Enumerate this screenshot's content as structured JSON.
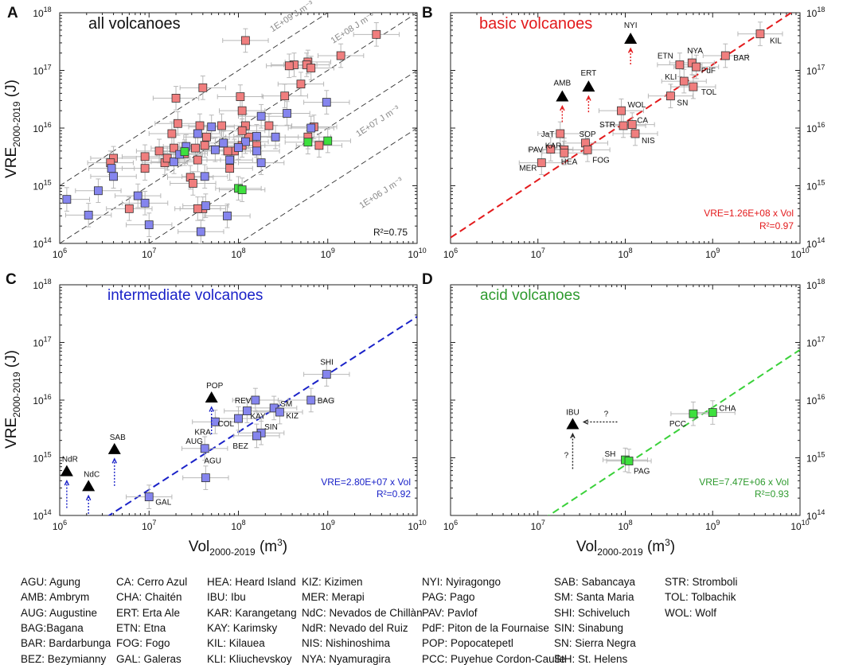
{
  "colors": {
    "basic": "#f07e7e",
    "intermediate": "#8585ee",
    "acid": "#3ee03e",
    "basic_line": "#e31a1c",
    "intermediate_line": "#1a22c8",
    "acid_line": "#2fd02f",
    "ref_line": "#333333",
    "errbar": "#b8b8b8"
  },
  "axes": {
    "xlabel": "Vol",
    "xlabel_sub": "2000-2019",
    "xlabel_unit": " (m",
    "xlabel_unit_sup": "3",
    "xlabel_close": ")",
    "ylabel": "VRE",
    "ylabel_sub": "2000-2019",
    "ylabel_unit": " (J)",
    "xlim": [
      1000000,
      10000000000
    ],
    "ylim": [
      100000000000000,
      1000000000000000000
    ],
    "x_ticks": [
      1000000,
      10000000,
      100000000,
      1000000000,
      10000000000
    ],
    "y_ticks": [
      100000000000000,
      1000000000000000,
      10000000000000000,
      100000000000000000,
      1000000000000000000
    ]
  },
  "chart_data": [
    {
      "id": "A",
      "type": "scatter",
      "panel_letter": "A",
      "title": "all volcanoes",
      "title_color": "#111111",
      "r2_text": "R²=0.75",
      "ref_lines": [
        {
          "label": "1E+09 J m⁻³",
          "factor": 1000000000
        },
        {
          "label": "1E+08 J m⁻³",
          "factor": 100000000
        },
        {
          "label": "1E+07 J m⁻³",
          "factor": 10000000
        },
        {
          "label": "1E+06 J m⁻³",
          "factor": 1000000
        }
      ],
      "series": [
        {
          "name": "basic",
          "points": [
            [
              3500000000.0,
              4.2e+17
            ],
            [
              1400000000.0,
              1.8e+17
            ],
            [
              600000000.0,
              1.4e+17
            ],
            [
              580000000.0,
              1.25e+17
            ],
            [
              650000000.0,
              1.1e+17
            ],
            [
              420000000.0,
              1.25e+17
            ],
            [
              330000000.0,
              3.6e+16
            ],
            [
              105000000.0,
              3.5e+16
            ],
            [
              110000000.0,
              2e+16
            ],
            [
              120000000.0,
              1.1e+16
            ],
            [
              130000000.0,
              7000000000000000.0
            ],
            [
              160000000.0,
              5000000000000000.0
            ],
            [
              90000000.0,
              4000000000000000.0
            ],
            [
              42000000.0,
              5000000000000000.0
            ],
            [
              25000000.0,
              3600000000000000.0
            ],
            [
              19000000.0,
              4500000000000000.0
            ],
            [
              13000000.0,
              4000000000000000.0
            ],
            [
              15000000.0,
              2500000000000000.0
            ],
            [
              9000000.0,
              3200000000000000.0
            ],
            [
              4000000.0,
              3000000000000000.0
            ],
            [
              3700000.0,
              2500000000000000.0
            ],
            [
              120000000.0,
              3.3e+17
            ],
            [
              20000000.0,
              3.3e+16
            ],
            [
              40000000.0,
              5e+16
            ],
            [
              500000000.0,
              5.8e+16
            ],
            [
              370000000.0,
              1.2e+17
            ],
            [
              220000000.0,
              1.1e+16
            ],
            [
              700000000.0,
              1.05e+16
            ],
            [
              600000000.0,
              7000000000000000.0
            ],
            [
              800000000.0,
              5000000000000000.0
            ],
            [
              35000000.0,
              2800000000000000.0
            ],
            [
              29000000.0,
              1400000000000000.0
            ],
            [
              31000000.0,
              1100000000000000.0
            ],
            [
              40000000.0,
              400000000000000.0
            ],
            [
              35000000.0,
              400000000000000.0
            ],
            [
              6000000.0,
              400000000000000.0
            ],
            [
              9000000.0,
              2000000000000000.0
            ],
            [
              18000000.0,
              8000000000000000.0
            ],
            [
              21000000.0,
              1.2e+16
            ],
            [
              37000000.0,
              1.1e+16
            ],
            [
              44000000.0,
              7000000000000000.0
            ],
            [
              65000000.0,
              1.1e+16
            ],
            [
              76000000.0,
              4000000000000000.0
            ],
            [
              110000000.0,
              9000000000000000.0
            ],
            [
              80000000.0,
              2000000000000000.0
            ],
            [
              16000000.0,
              3000000000000000.0
            ],
            [
              110000000.0,
              5000000000000000.0
            ],
            [
              33000000.0,
              4500000000000000.0
            ]
          ]
        },
        {
          "name": "intermediate",
          "points": [
            [
              970000000.0,
              2.8e+16
            ],
            [
              650000000.0,
              1e+16
            ],
            [
              180000000.0,
              1.6e+16
            ],
            [
              160000000.0,
              7200000000000000.0
            ],
            [
              120000000.0,
              5800000000000000.0
            ],
            [
              100000000.0,
              4600000000000000.0
            ],
            [
              80000000.0,
              2800000000000000.0
            ],
            [
              55000000.0,
              4200000000000000.0
            ],
            [
              50000000.0,
              1.05e+16
            ],
            [
              42000000.0,
              1450000000000000.0
            ],
            [
              43000000.0,
              450000000000000.0
            ],
            [
              10000000.0,
              210000000000000.0
            ],
            [
              4000000.0,
              1450000000000000.0
            ],
            [
              2100000.0,
              310000000000000.0
            ],
            [
              1200000.0,
              580000000000000.0
            ],
            [
              2700000.0,
              820000000000000.0
            ],
            [
              7500000.0,
              670000000000000.0
            ],
            [
              19000000.0,
              2600000000000000.0
            ],
            [
              38000000.0,
              160000000000000.0
            ],
            [
              35000000.0,
              8000000000000000.0
            ],
            [
              22000000.0,
              3500000000000000.0
            ],
            [
              26000000.0,
              4800000000000000.0
            ],
            [
              180000000.0,
              2500000000000000.0
            ],
            [
              75000000.0,
              300000000000000.0
            ],
            [
              3800000.0,
              2000000000000000.0
            ],
            [
              260000000.0,
              7000000000000000.0
            ],
            [
              350000000.0,
              1.8e+16
            ],
            [
              160000000.0,
              4000000000000000.0
            ],
            [
              9000000.0,
              500000000000000.0
            ],
            [
              68000000.0,
              5500000000000000.0
            ]
          ]
        },
        {
          "name": "acid",
          "points": [
            [
              1000000000.0,
              6000000000000000.0
            ],
            [
              600000000.0,
              5700000000000000.0
            ],
            [
              25000000.0,
              3900000000000000.0
            ],
            [
              100000000.0,
              900000000000000.0
            ],
            [
              110000000.0,
              850000000000000.0
            ]
          ]
        }
      ]
    },
    {
      "id": "B",
      "type": "scatter",
      "panel_letter": "B",
      "title": "basic volcanoes",
      "title_color": "#e31a1c",
      "fit_text": "VRE=1.26E+08 x Vol",
      "r2_text": "R²=0.97",
      "fit_factor": 126000000,
      "fit_color": "#e31a1c",
      "series": [
        {
          "name": "basic",
          "points": [
            {
              "label": "KIL",
              "x": 3500000000.0,
              "y": 4.3e+17
            },
            {
              "label": "BAR",
              "x": 1400000000.0,
              "y": 1.8e+17
            },
            {
              "label": "NYA",
              "x": 580000000.0,
              "y": 1.35e+17
            },
            {
              "label": "PdF",
              "x": 650000000.0,
              "y": 1.15e+17
            },
            {
              "label": "ETN",
              "x": 420000000.0,
              "y": 1.25e+17
            },
            {
              "label": "KLI",
              "x": 470000000.0,
              "y": 6.5e+16
            },
            {
              "label": "TOL",
              "x": 600000000.0,
              "y": 5.2e+16
            },
            {
              "label": "SN",
              "x": 330000000.0,
              "y": 3.6e+16
            },
            {
              "label": "WOL",
              "x": 90000000.0,
              "y": 2e+16
            },
            {
              "label": "CA",
              "x": 120000000.0,
              "y": 1.15e+16
            },
            {
              "label": "STR",
              "x": 95000000.0,
              "y": 1.1e+16
            },
            {
              "label": "NIS",
              "x": 130000000.0,
              "y": 8000000000000000.0
            },
            {
              "label": "JaT",
              "x": 18000000.0,
              "y": 8000000000000000.0
            },
            {
              "label": "SOP",
              "x": 35000000.0,
              "y": 5500000000000000.0
            },
            {
              "label": "KAR",
              "x": 20000000.0,
              "y": 4200000000000000.0
            },
            {
              "label": "PAV",
              "x": 14000000.0,
              "y": 4300000000000000.0
            },
            {
              "label": "HEA",
              "x": 20000000.0,
              "y": 3700000000000000.0
            },
            {
              "label": "FOG",
              "x": 37000000.0,
              "y": 4200000000000000.0
            },
            {
              "label": "MER",
              "x": 11000000.0,
              "y": 2500000000000000.0
            }
          ]
        },
        {
          "name": "lower-bound",
          "points": [
            {
              "label": "NYI",
              "x": 115000000.0,
              "y": 3.5e+17
            },
            {
              "label": "AMB",
              "x": 19000000.0,
              "y": 3.5e+16
            },
            {
              "label": "ERT",
              "x": 38000000.0,
              "y": 5.2e+16
            }
          ]
        }
      ]
    },
    {
      "id": "C",
      "type": "scatter",
      "panel_letter": "C",
      "title": "intermediate volcanoes",
      "title_color": "#1a22c8",
      "fit_text": "VRE=2.80E+07 x Vol",
      "r2_text": "R²=0.92",
      "fit_factor": 28000000,
      "fit_color": "#1a22c8",
      "series": [
        {
          "name": "intermediate",
          "points": [
            {
              "label": "SHI",
              "x": 970000000.0,
              "y": 2.8e+16
            },
            {
              "label": "BAG",
              "x": 650000000.0,
              "y": 1e+16
            },
            {
              "label": "REV",
              "x": 155000000.0,
              "y": 1e+16
            },
            {
              "label": "SM",
              "x": 250000000.0,
              "y": 7300000000000000.0
            },
            {
              "label": "KIZ",
              "x": 290000000.0,
              "y": 6200000000000000.0
            },
            {
              "label": "KAY",
              "x": 125000000.0,
              "y": 6500000000000000.0
            },
            {
              "label": "COL",
              "x": 100000000.0,
              "y": 4800000000000000.0
            },
            {
              "label": "SIN",
              "x": 180000000.0,
              "y": 2700000000000000.0
            },
            {
              "label": "BEZ",
              "x": 160000000.0,
              "y": 2400000000000000.0
            },
            {
              "label": "KRA",
              "x": 55000000.0,
              "y": 4200000000000000.0
            },
            {
              "label": "AUG",
              "x": 42000000.0,
              "y": 1450000000000000.0
            },
            {
              "label": "AGU",
              "x": 43000000.0,
              "y": 450000000000000.0
            },
            {
              "label": "GAL",
              "x": 10000000.0,
              "y": 210000000000000.0
            }
          ]
        },
        {
          "name": "lower-bound",
          "points": [
            {
              "label": "POP",
              "x": 50000000.0,
              "y": 1.1e+16
            },
            {
              "label": "SAB",
              "x": 4100000.0,
              "y": 1400000000000000.0
            },
            {
              "label": "NdR",
              "x": 1200000.0,
              "y": 580000000000000.0
            },
            {
              "label": "NdC",
              "x": 2100000.0,
              "y": 320000000000000.0
            }
          ]
        }
      ]
    },
    {
      "id": "D",
      "type": "scatter",
      "panel_letter": "D",
      "title": "acid volcanoes",
      "title_color": "#2e9a2e",
      "fit_text": "VRE=7.47E+06 x Vol",
      "r2_text": "R²=0.93",
      "fit_factor": 7470000,
      "fit_color": "#3ad13a",
      "unknown_mark": "?",
      "series": [
        {
          "name": "acid",
          "points": [
            {
              "label": "CHA",
              "x": 1000000000.0,
              "y": 6100000000000000.0
            },
            {
              "label": "PCC",
              "x": 600000000.0,
              "y": 5800000000000000.0
            },
            {
              "label": "SH",
              "x": 100000000.0,
              "y": 920000000000000.0
            },
            {
              "label": "PAG",
              "x": 110000000.0,
              "y": 880000000000000.0
            }
          ]
        },
        {
          "name": "unknown",
          "points": [
            {
              "label": "IBU",
              "x": 25000000.0,
              "y": 3800000000000000.0
            }
          ]
        }
      ]
    }
  ],
  "legend": [
    {
      "code": "AGU",
      "name": "Agung",
      "sep": ": "
    },
    {
      "code": "AMB",
      "name": "Ambrym",
      "sep": ": "
    },
    {
      "code": "AUG",
      "name": "Augustine",
      "sep": ": "
    },
    {
      "code": "BAG",
      "name": "Bagana",
      "sep": ":"
    },
    {
      "code": "BAR",
      "name": "Bardarbunga",
      "sep": ": "
    },
    {
      "code": "BEZ",
      "name": "Bezymianny",
      "sep": ": "
    },
    {
      "code": "CA",
      "name": "Cerro Azul",
      "sep": ": "
    },
    {
      "code": "CHA",
      "name": "Chaitén",
      "sep": ": "
    },
    {
      "code": "ERT",
      "name": "Erta Ale",
      "sep": ": "
    },
    {
      "code": "ETN",
      "name": "Etna",
      "sep": ": "
    },
    {
      "code": "FOG",
      "name": "Fogo",
      "sep": ": "
    },
    {
      "code": "GAL",
      "name": "Galeras",
      "sep": ": "
    },
    {
      "code": "HEA",
      "name": "Heard Island",
      "sep": ": "
    },
    {
      "code": "IBU",
      "name": "Ibu",
      "sep": ": "
    },
    {
      "code": "KAR",
      "name": "Karangetang",
      "sep": ": "
    },
    {
      "code": "KAY",
      "name": "Karimsky",
      "sep": ": "
    },
    {
      "code": "KIL",
      "name": "Kilauea",
      "sep": ": "
    },
    {
      "code": "KLI",
      "name": "Kliuchevskoy",
      "sep": ": "
    },
    {
      "code": "KIZ",
      "name": "Kizimen",
      "sep": ": "
    },
    {
      "code": "MER",
      "name": "Merapi",
      "sep": ": "
    },
    {
      "code": "NdC",
      "name": "Nevados de Chillàn",
      "sep": ": "
    },
    {
      "code": "NdR",
      "name": "Nevado del Ruiz",
      "sep": ": "
    },
    {
      "code": "NIS",
      "name": "Nishinoshima",
      "sep": ": "
    },
    {
      "code": "NYA",
      "name": "Nyamuragira",
      "sep": ": "
    },
    {
      "code": "NYI",
      "name": "Nyiragongo",
      "sep": ": "
    },
    {
      "code": "PAG",
      "name": "Pago",
      "sep": ": "
    },
    {
      "code": "PAV",
      "name": "Pavlof",
      "sep": ": "
    },
    {
      "code": "PdF",
      "name": "Piton de la Fournaise",
      "sep": ": "
    },
    {
      "code": "POP",
      "name": "Popocatepetl",
      "sep": ": "
    },
    {
      "code": "PCC",
      "name": "Puyehue Cordon-Caulle",
      "sep": ": "
    },
    {
      "code": "SAB",
      "name": "Sabancaya",
      "sep": ": "
    },
    {
      "code": "SM",
      "name": "Santa Maria",
      "sep": ": "
    },
    {
      "code": "SHI",
      "name": "Schiveluch",
      "sep": ": "
    },
    {
      "code": "SIN",
      "name": "Sinabung",
      "sep": ": "
    },
    {
      "code": "SN",
      "name": "Sierra Negra",
      "sep": ": "
    },
    {
      "code": "StH",
      "name": "St. Helens",
      "sep": ": "
    },
    {
      "code": "STR",
      "name": "Stromboli",
      "sep": ": "
    },
    {
      "code": "TOL",
      "name": "Tolbachik",
      "sep": ": "
    },
    {
      "code": "WOL",
      "name": "Wolf",
      "sep": ": "
    }
  ]
}
